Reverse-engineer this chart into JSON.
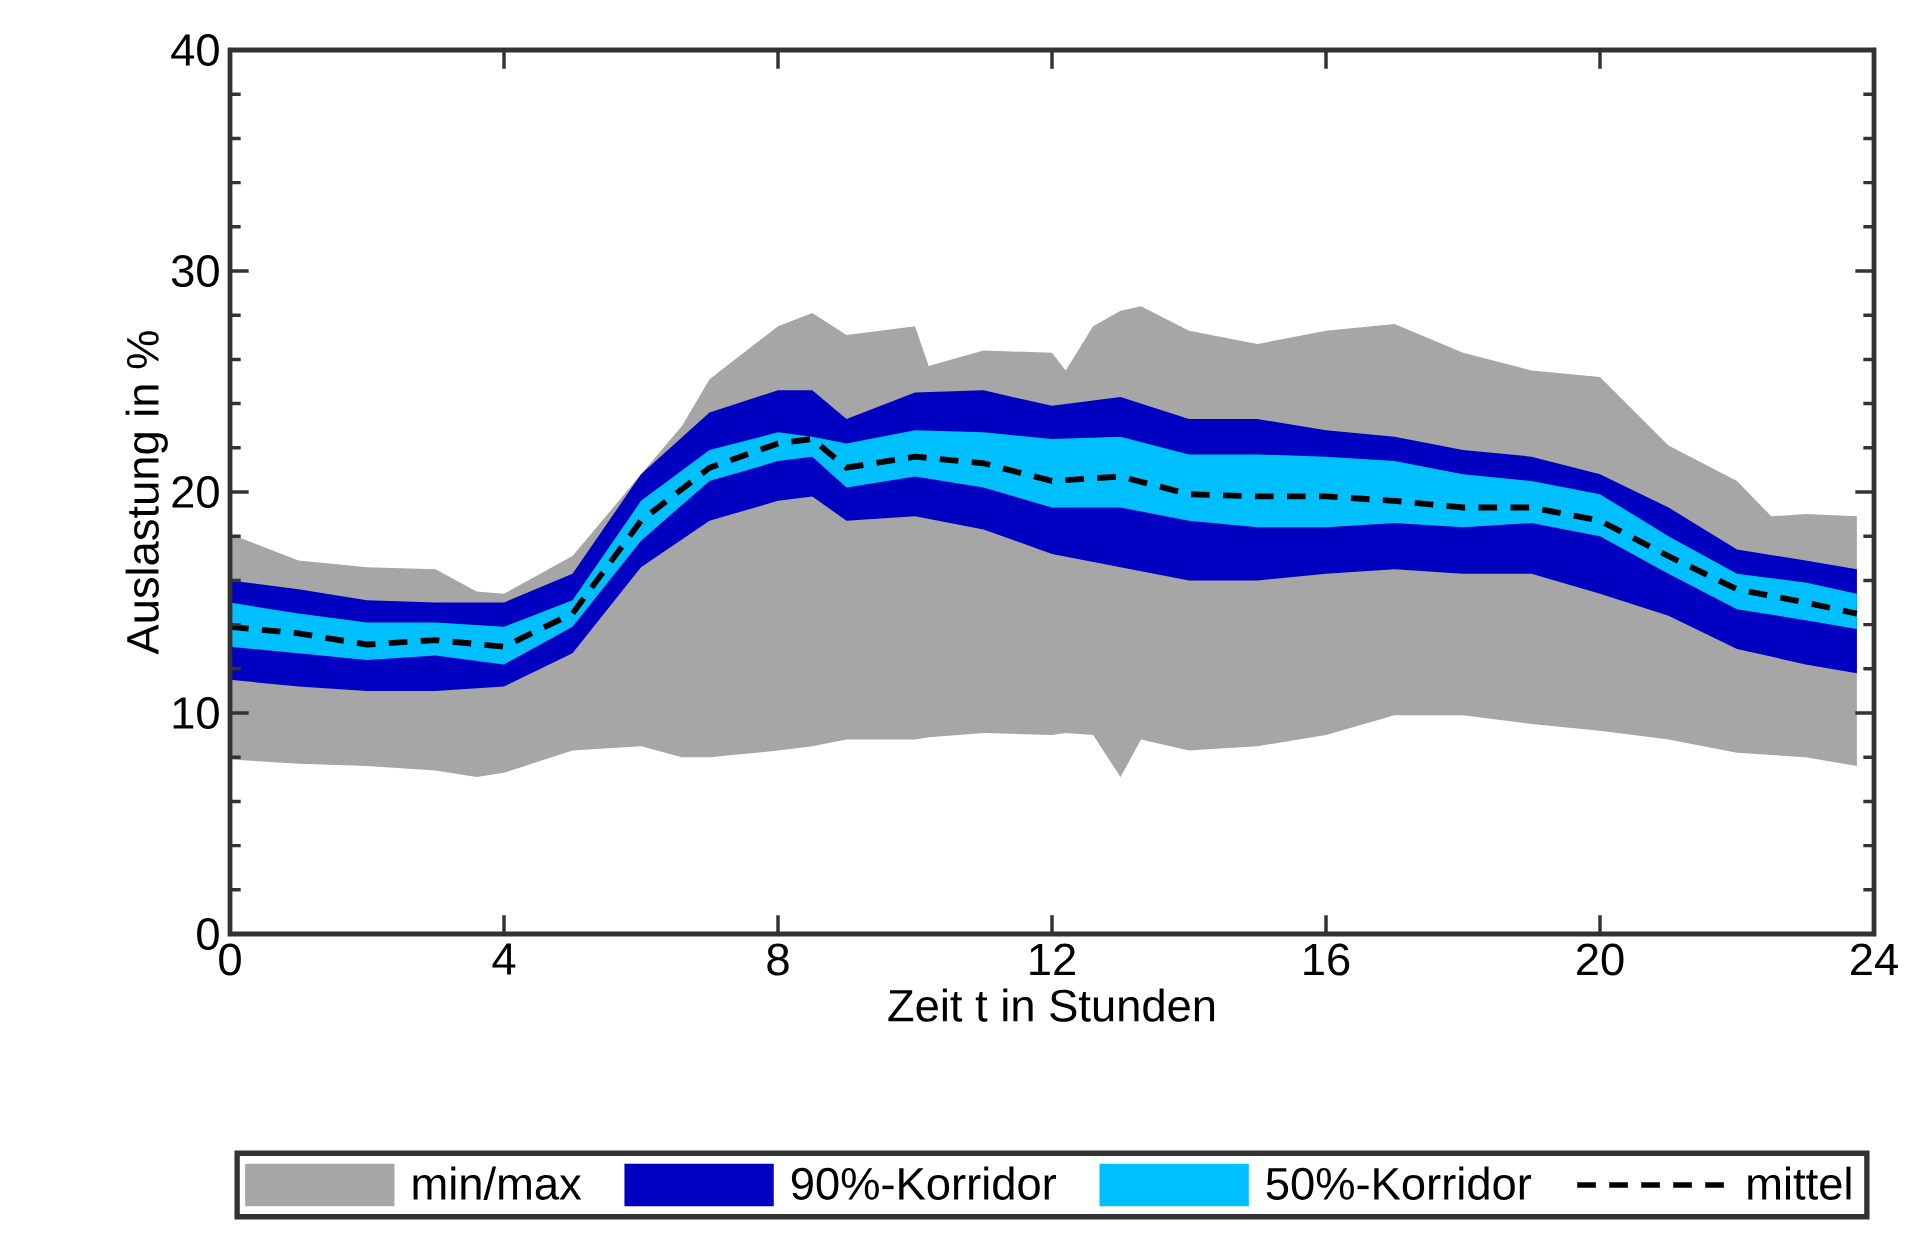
{
  "chart_data": {
    "type": "line",
    "xlabel": "Zeit t in Stunden",
    "ylabel": "Auslastung in %",
    "xlim": [
      0,
      24
    ],
    "xticks": [
      0,
      4,
      8,
      12,
      16,
      20,
      24
    ],
    "ylim": [
      0,
      40
    ],
    "yticks": [
      0,
      10,
      20,
      30,
      40
    ],
    "legend": "bottom",
    "series": [
      {
        "name": "min/max",
        "type": "area",
        "color": "#a6a6a6",
        "x": [
          0,
          1,
          2,
          3,
          3.6,
          4,
          5,
          6,
          6.6,
          7,
          8,
          8.5,
          9,
          10,
          10.2,
          11,
          12,
          12.2,
          12.6,
          13,
          13.3,
          14,
          15,
          16,
          17,
          18,
          19,
          20,
          21,
          22,
          22.5,
          23,
          23.75
        ],
        "values": [
          null,
          null,
          null,
          null,
          null,
          null,
          null,
          null,
          null,
          null,
          null,
          null,
          null,
          null,
          null,
          null,
          null,
          null,
          null,
          null,
          null,
          null,
          null,
          null,
          null,
          null,
          null,
          null,
          null,
          null,
          null,
          null,
          null
        ],
        "upper": [
          18.1,
          16.9,
          16.6,
          16.5,
          15.5,
          15.4,
          17.1,
          20.8,
          23.0,
          25.1,
          27.5,
          28.1,
          27.1,
          27.5,
          25.7,
          26.4,
          26.3,
          25.5,
          27.5,
          28.2,
          28.4,
          27.3,
          26.7,
          27.3,
          27.6,
          26.3,
          25.5,
          25.2,
          22.1,
          20.5,
          18.9,
          19.0,
          18.9
        ],
        "lower": [
          7.9,
          7.7,
          7.6,
          7.4,
          7.1,
          7.3,
          8.3,
          8.5,
          8.0,
          8.0,
          8.3,
          8.5,
          8.8,
          8.8,
          8.9,
          9.1,
          9.0,
          9.1,
          9.0,
          7.1,
          8.8,
          8.3,
          8.5,
          9.0,
          9.9,
          9.9,
          9.5,
          9.2,
          8.8,
          8.2,
          8.1,
          8.0,
          7.6
        ]
      },
      {
        "name": "90%-Korridor",
        "type": "area",
        "color": "#0000c0",
        "x": [
          0,
          1,
          2,
          3,
          4,
          5,
          6,
          7,
          8,
          8.5,
          9,
          10,
          11,
          12,
          13,
          14,
          15,
          16,
          17,
          18,
          19,
          20,
          21,
          22,
          23,
          23.75
        ],
        "values": [
          null,
          null,
          null,
          null,
          null,
          null,
          null,
          null,
          null,
          null,
          null,
          null,
          null,
          null,
          null,
          null,
          null,
          null,
          null,
          null,
          null,
          null,
          null,
          null,
          null,
          null
        ],
        "upper": [
          16.0,
          15.6,
          15.1,
          15.0,
          15.0,
          16.3,
          20.8,
          23.6,
          24.6,
          24.6,
          23.3,
          24.5,
          24.6,
          23.9,
          24.3,
          23.3,
          23.3,
          22.8,
          22.5,
          21.9,
          21.6,
          20.8,
          19.3,
          17.4,
          16.9,
          16.5
        ],
        "lower": [
          11.5,
          11.2,
          11.0,
          11.0,
          11.2,
          12.7,
          16.6,
          18.7,
          19.6,
          19.8,
          18.7,
          18.9,
          18.3,
          17.2,
          16.6,
          16.0,
          16.0,
          16.3,
          16.5,
          16.3,
          16.3,
          15.4,
          14.4,
          12.9,
          12.2,
          11.8
        ]
      },
      {
        "name": "50%-Korridor",
        "type": "area",
        "color": "#00bfff",
        "x": [
          0,
          1,
          2,
          3,
          4,
          5,
          6,
          7,
          8,
          8.5,
          9,
          10,
          11,
          12,
          13,
          14,
          15,
          16,
          17,
          18,
          19,
          20,
          21,
          22,
          23,
          23.75
        ],
        "values": [
          null,
          null,
          null,
          null,
          null,
          null,
          null,
          null,
          null,
          null,
          null,
          null,
          null,
          null,
          null,
          null,
          null,
          null,
          null,
          null,
          null,
          null,
          null,
          null,
          null,
          null
        ],
        "upper": [
          15.0,
          14.5,
          14.1,
          14.1,
          13.9,
          15.1,
          19.6,
          21.9,
          22.7,
          22.5,
          22.2,
          22.8,
          22.7,
          22.4,
          22.5,
          21.7,
          21.7,
          21.6,
          21.4,
          20.8,
          20.5,
          19.9,
          18.0,
          16.3,
          15.9,
          15.4
        ],
        "lower": [
          13.0,
          12.7,
          12.4,
          12.6,
          12.2,
          13.9,
          17.8,
          20.5,
          21.4,
          21.6,
          20.2,
          20.7,
          20.2,
          19.3,
          19.3,
          18.7,
          18.4,
          18.4,
          18.6,
          18.4,
          18.6,
          18.0,
          16.3,
          14.7,
          14.2,
          13.8
        ]
      },
      {
        "name": "mittel",
        "color": "#000000",
        "line_style": "dashed",
        "x": [
          0,
          1,
          2,
          3,
          4,
          5,
          6,
          7,
          8,
          8.5,
          9,
          10,
          11,
          12,
          13,
          14,
          15,
          16,
          17,
          18,
          19,
          20,
          21,
          22,
          23,
          23.75
        ],
        "values": [
          13.9,
          13.6,
          13.1,
          13.3,
          13.0,
          14.5,
          18.7,
          21.1,
          22.2,
          22.4,
          21.1,
          21.6,
          21.3,
          20.5,
          20.7,
          19.9,
          19.8,
          19.8,
          19.6,
          19.3,
          19.3,
          18.7,
          17.1,
          15.6,
          15.0,
          14.5
        ]
      }
    ]
  }
}
